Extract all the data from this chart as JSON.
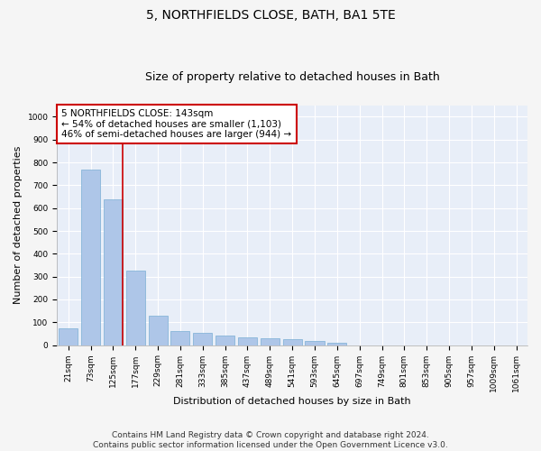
{
  "title": "5, NORTHFIELDS CLOSE, BATH, BA1 5TE",
  "subtitle": "Size of property relative to detached houses in Bath",
  "xlabel": "Distribution of detached houses by size in Bath",
  "ylabel": "Number of detached properties",
  "bar_color": "#aec6e8",
  "bar_edge_color": "#7aafd4",
  "bg_color": "#e8eef8",
  "grid_color": "#ffffff",
  "vline_color": "#cc0000",
  "vline_x_idx": 2,
  "annotation_line1": "5 NORTHFIELDS CLOSE: 143sqm",
  "annotation_line2": "← 54% of detached houses are smaller (1,103)",
  "annotation_line3": "46% of semi-detached houses are larger (944) →",
  "annotation_box_color": "#cc0000",
  "categories": [
    "21sqm",
    "73sqm",
    "125sqm",
    "177sqm",
    "229sqm",
    "281sqm",
    "333sqm",
    "385sqm",
    "437sqm",
    "489sqm",
    "541sqm",
    "593sqm",
    "645sqm",
    "697sqm",
    "749sqm",
    "801sqm",
    "853sqm",
    "905sqm",
    "957sqm",
    "1009sqm",
    "1061sqm"
  ],
  "values": [
    75,
    770,
    640,
    325,
    130,
    60,
    55,
    40,
    35,
    30,
    25,
    18,
    10,
    0,
    0,
    0,
    0,
    0,
    0,
    0,
    0
  ],
  "ylim": [
    0,
    1050
  ],
  "yticks": [
    0,
    100,
    200,
    300,
    400,
    500,
    600,
    700,
    800,
    900,
    1000
  ],
  "footer": "Contains HM Land Registry data © Crown copyright and database right 2024.\nContains public sector information licensed under the Open Government Licence v3.0.",
  "title_fontsize": 10,
  "subtitle_fontsize": 9,
  "tick_fontsize": 6.5,
  "ylabel_fontsize": 8,
  "xlabel_fontsize": 8,
  "footer_fontsize": 6.5,
  "annotation_fontsize": 7.5
}
